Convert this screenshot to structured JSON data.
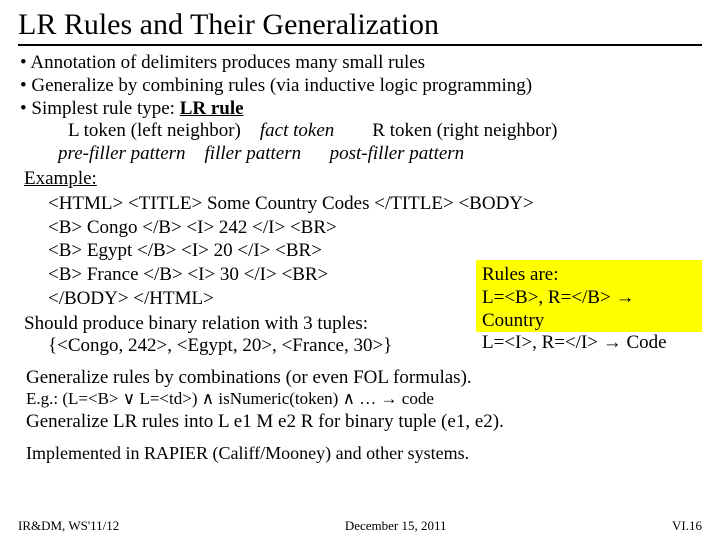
{
  "title": "LR Rules and Their Generalization",
  "bullets": {
    "b1": "• Annotation of delimiters produces many small rules",
    "b2": "• Generalize by combining rules (via inductive logic programming)",
    "b3_pre": "• Simplest rule type:  ",
    "b3_bold": "LR rule"
  },
  "row1": {
    "l": "L token (left neighbor)",
    "f": "fact token",
    "r": "R token (right neighbor)"
  },
  "row2": {
    "pre": "pre-filler pattern",
    "fill": "filler pattern",
    "post": "post-filler pattern"
  },
  "example_label": "Example:",
  "code": {
    "l1": "<HTML> <TITLE> Some Country Codes </TITLE> <BODY>",
    "l2": "<B> Congo </B> <I> 242 </I> <BR>",
    "l3": "<B> Egypt </B> <I> 20 </I> <BR>",
    "l4": "<B> France </B> <I> 30 </I> <BR>",
    "l5": "</BODY> </HTML>"
  },
  "should": "Should produce binary relation with 3 tuples:",
  "tuples": "{<Congo, 242>, <Egypt, 20>, <France, 30>}",
  "yellowbox": {
    "l1": "Rules are:",
    "l2": "L=<B>, R=</B> → Country",
    "l3": "L=<I>, R=</I> → Code"
  },
  "generalize": "Generalize rules by combinations (or even FOL formulas).",
  "eg": "E.g.: (L=<B> ∨ L=<td>) ∧ isNumeric(token) ∧ … → code",
  "generalize2": "Generalize LR rules into L e1 M e2 R for binary tuple (e1, e2).",
  "implemented": "Implemented in RAPIER (Califf/Mooney) and other systems.",
  "footer": {
    "left": "IR&DM, WS'11/12",
    "center": "December 15, 2011",
    "right": "VI.16"
  }
}
